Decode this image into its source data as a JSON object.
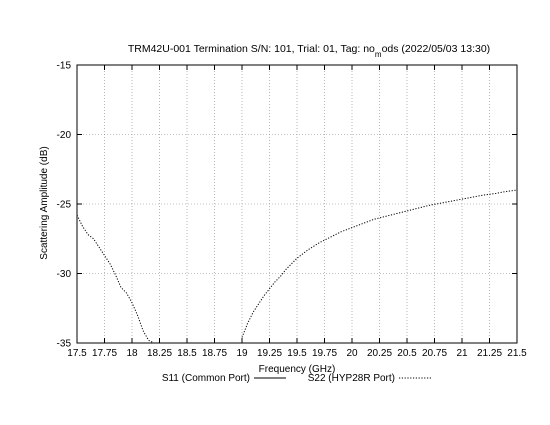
{
  "chart_data": {
    "type": "line",
    "title_main": "TRM42U-001 Termination S/N: 101, Trial: 01, Tag: no",
    "title_sub": "m",
    "title_end": "ods (2022/05/03 13:30)",
    "xlabel": "Frequency (GHz)",
    "ylabel": "Scattering Amplitude (dB)",
    "xlim": [
      17.5,
      21.5
    ],
    "ylim": [
      -35,
      -15
    ],
    "x_ticks": [
      "17.5",
      "17.75",
      "18",
      "18.25",
      "18.5",
      "18.75",
      "19",
      "19.25",
      "19.5",
      "19.75",
      "20",
      "20.25",
      "20.5",
      "20.75",
      "21",
      "21.25",
      "21.5"
    ],
    "y_ticks": [
      "-35",
      "-30",
      "-25",
      "-20",
      "-15"
    ],
    "grid": true,
    "legend_position": "bottom",
    "series": [
      {
        "name": "S11 (Common Port)",
        "style": "solid",
        "x": [],
        "y": []
      },
      {
        "name": "S22 (HYP28R Port)",
        "style": "dotted",
        "x": [
          17.5,
          17.55,
          17.6,
          17.65,
          17.7,
          17.75,
          17.8,
          17.85,
          17.9,
          17.95,
          18.0,
          18.05,
          18.1,
          18.15,
          18.2,
          19.0,
          19.05,
          19.1,
          19.15,
          19.2,
          19.25,
          19.3,
          19.35,
          19.4,
          19.5,
          19.6,
          19.7,
          19.8,
          19.9,
          20.0,
          20.1,
          20.2,
          20.3,
          20.4,
          20.5,
          20.6,
          20.7,
          20.8,
          20.9,
          21.0,
          21.1,
          21.2,
          21.3,
          21.4,
          21.5
        ],
        "y": [
          -25.8,
          -26.6,
          -27.2,
          -27.5,
          -28.1,
          -28.7,
          -29.3,
          -30.1,
          -31.0,
          -31.4,
          -32.1,
          -33.0,
          -34.1,
          -34.8,
          -35.0,
          -34.6,
          -33.6,
          -32.8,
          -32.2,
          -31.6,
          -31.1,
          -30.6,
          -30.2,
          -29.7,
          -28.9,
          -28.3,
          -27.8,
          -27.4,
          -27.0,
          -26.7,
          -26.4,
          -26.1,
          -25.9,
          -25.7,
          -25.5,
          -25.3,
          -25.1,
          -24.95,
          -24.8,
          -24.65,
          -24.5,
          -24.35,
          -24.25,
          -24.1,
          -24.0
        ]
      }
    ]
  }
}
